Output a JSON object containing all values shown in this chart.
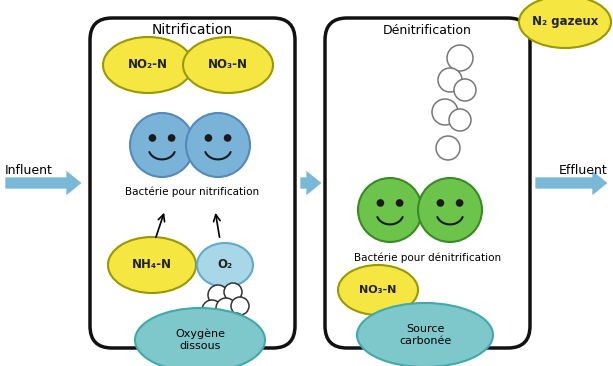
{
  "fig_width": 6.13,
  "fig_height": 3.66,
  "bg_color": "#ffffff",
  "yellow": "#F5E642",
  "blue_bact": "#7ab3d8",
  "green_bact": "#6cc44a",
  "cyan_blob": "#7ec8c8",
  "arrow_color": "#7ab8d8",
  "influent_label": "Influent",
  "effluent_label": "Effluent",
  "n2_label": "N₂ gazeux",
  "no2_label": "NO₂-N",
  "no3_label": "NO₃-N",
  "nh4_label": "NH₄-N",
  "o2_label": "O₂",
  "oxygen_label": "Oxygène\ndissous",
  "bact_nitri_label": "Bactérie pour nitrification",
  "bact_denitri_label": "Bactérie pour dénitrification",
  "no3_denitri_label": "NO₃-N",
  "source_label": "Source\ncarbonée",
  "nitri_title": "Nitrification",
  "denitri_title": "Dénitrification"
}
